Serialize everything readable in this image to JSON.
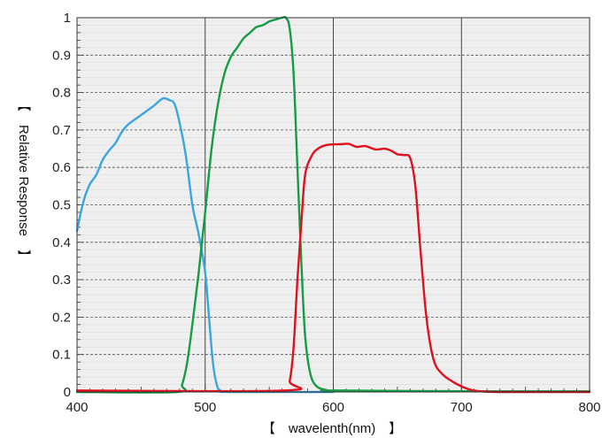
{
  "chart_data": {
    "type": "line",
    "title": "",
    "xlabel": "【　wavelenth(nm)　】",
    "ylabel": "【　Relative Response　】",
    "xlim": [
      400,
      800
    ],
    "ylim": [
      0,
      1
    ],
    "x_ticks": [
      "400",
      "500",
      "600",
      "700",
      "800"
    ],
    "y_ticks": [
      "0",
      "0.1",
      "0.2",
      "0.3",
      "0.4",
      "0.5",
      "0.6",
      "0.7",
      "0.8",
      "0.9",
      "1"
    ],
    "grid": true,
    "legend": "none",
    "colors": {
      "plot_background": "#efefef",
      "blue": "#3aa6dd",
      "green": "#179b45",
      "red": "#e0101f"
    },
    "series": [
      {
        "color": "#3aa6dd",
        "points": [
          [
            400,
            0.43
          ],
          [
            403,
            0.48
          ],
          [
            406,
            0.52
          ],
          [
            410,
            0.555
          ],
          [
            415,
            0.58
          ],
          [
            420,
            0.62
          ],
          [
            425,
            0.645
          ],
          [
            430,
            0.665
          ],
          [
            435,
            0.695
          ],
          [
            440,
            0.715
          ],
          [
            450,
            0.74
          ],
          [
            460,
            0.765
          ],
          [
            465,
            0.78
          ],
          [
            468,
            0.785
          ],
          [
            472,
            0.78
          ],
          [
            476,
            0.77
          ],
          [
            480,
            0.72
          ],
          [
            485,
            0.63
          ],
          [
            490,
            0.5
          ],
          [
            495,
            0.42
          ],
          [
            500,
            0.32
          ],
          [
            503,
            0.2
          ],
          [
            506,
            0.08
          ],
          [
            509,
            0.02
          ],
          [
            512,
            0.004
          ],
          [
            520,
            0
          ],
          [
            600,
            0
          ]
        ]
      },
      {
        "color": "#179b45",
        "points": [
          [
            400,
            0
          ],
          [
            478,
            0
          ],
          [
            482,
            0.02
          ],
          [
            486,
            0.08
          ],
          [
            490,
            0.18
          ],
          [
            495,
            0.32
          ],
          [
            500,
            0.48
          ],
          [
            505,
            0.65
          ],
          [
            510,
            0.77
          ],
          [
            515,
            0.85
          ],
          [
            520,
            0.895
          ],
          [
            525,
            0.92
          ],
          [
            530,
            0.945
          ],
          [
            535,
            0.96
          ],
          [
            540,
            0.975
          ],
          [
            545,
            0.98
          ],
          [
            550,
            0.99
          ],
          [
            555,
            0.995
          ],
          [
            560,
            1.0
          ],
          [
            563,
            1.0
          ],
          [
            566,
            0.97
          ],
          [
            569,
            0.85
          ],
          [
            572,
            0.6
          ],
          [
            575,
            0.35
          ],
          [
            578,
            0.15
          ],
          [
            582,
            0.05
          ],
          [
            587,
            0.015
          ],
          [
            595,
            0.005
          ],
          [
            600,
            0.004
          ],
          [
            700,
            0.002
          ],
          [
            800,
            0.002
          ]
        ]
      },
      {
        "color": "#e0101f",
        "points": [
          [
            400,
            0.004
          ],
          [
            562,
            0.004
          ],
          [
            566,
            0.03
          ],
          [
            569,
            0.12
          ],
          [
            572,
            0.3
          ],
          [
            575,
            0.45
          ],
          [
            578,
            0.58
          ],
          [
            583,
            0.63
          ],
          [
            588,
            0.65
          ],
          [
            595,
            0.66
          ],
          [
            605,
            0.662
          ],
          [
            612,
            0.663
          ],
          [
            618,
            0.655
          ],
          [
            625,
            0.657
          ],
          [
            633,
            0.648
          ],
          [
            640,
            0.65
          ],
          [
            645,
            0.645
          ],
          [
            650,
            0.635
          ],
          [
            655,
            0.633
          ],
          [
            660,
            0.625
          ],
          [
            664,
            0.55
          ],
          [
            668,
            0.38
          ],
          [
            672,
            0.22
          ],
          [
            676,
            0.12
          ],
          [
            680,
            0.07
          ],
          [
            686,
            0.045
          ],
          [
            692,
            0.03
          ],
          [
            700,
            0.015
          ],
          [
            708,
            0.005
          ],
          [
            715,
            0.002
          ],
          [
            730,
            0
          ],
          [
            800,
            0
          ]
        ]
      }
    ]
  }
}
